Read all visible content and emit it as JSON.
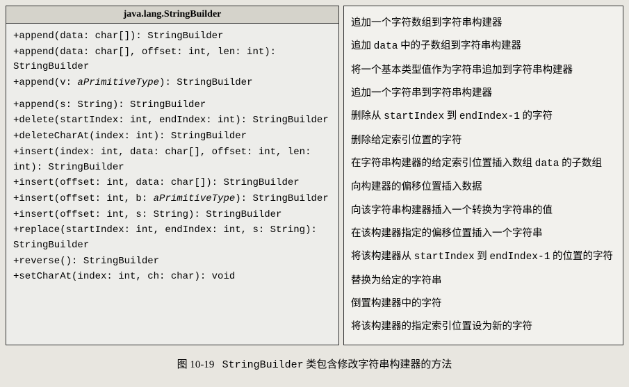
{
  "header": {
    "class_name": "java.lang.StringBuilder"
  },
  "methods": {
    "m1": "+append(data: char[]): StringBuilder",
    "m2": "+append(data: char[], offset: int, len: int): StringBuilder",
    "m3a": "+append(v: ",
    "m3b": "aPrimitiveType",
    "m3c": "): StringBuilder",
    "m4": "+append(s: String): StringBuilder",
    "m5": "+delete(startIndex: int, endIndex: int): StringBuilder",
    "m6": "+deleteCharAt(index: int): StringBuilder",
    "m7": "+insert(index: int, data: char[], offset: int, len: int): StringBuilder",
    "m8": "+insert(offset: int, data: char[]): StringBuilder",
    "m9a": "+insert(offset: int, b: ",
    "m9b": "aPrimitiveType",
    "m9c": "): StringBuilder",
    "m10": "+insert(offset: int, s: String): StringBuilder",
    "m11": "+replace(startIndex: int, endIndex: int, s: String): StringBuilder",
    "m12": "+reverse(): StringBuilder",
    "m13": "+setCharAt(index: int, ch: char): void"
  },
  "descriptions": {
    "d1": "追加一个字符数组到字符串构建器",
    "d2a": "追加 ",
    "d2b": "data",
    "d2c": " 中的子数组到字符串构建器",
    "d3": "将一个基本类型值作为字符串追加到字符串构建器",
    "d4": "追加一个字符串到字符串构建器",
    "d5a": "删除从 ",
    "d5b": "startIndex",
    "d5c": " 到 ",
    "d5d": "endIndex-1",
    "d5e": " 的字符",
    "d6": "删除给定索引位置的字符",
    "d7a": "在字符串构建器的给定索引位置插入数组 ",
    "d7b": "data",
    "d7c": " 的子数组",
    "d8": "向构建器的偏移位置插入数据",
    "d9": "向该字符串构建器插入一个转换为字符串的值",
    "d10": "在该构建器指定的偏移位置插入一个字符串",
    "d11a": "将该构建器从 ",
    "d11b": "startIndex",
    "d11c": " 到 ",
    "d11d": "endIndex-1",
    "d11e": " 的位置的字符替换为给定的字符串",
    "d12": "倒置构建器中的字符",
    "d13": "将该构建器的指定索引位置设为新的字符"
  },
  "caption": {
    "label": "图 10-19",
    "classname": "StringBuilder",
    "text": "类包含修改字符串构建器的方法"
  }
}
